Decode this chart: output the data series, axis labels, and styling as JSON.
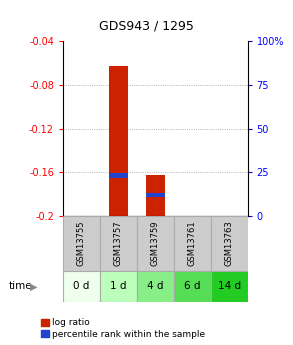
{
  "title": "GDS943 / 1295",
  "samples": [
    "GSM13755",
    "GSM13757",
    "GSM13759",
    "GSM13761",
    "GSM13763"
  ],
  "time_labels": [
    "0 d",
    "1 d",
    "4 d",
    "6 d",
    "14 d"
  ],
  "ylim_left": [
    -0.2,
    -0.04
  ],
  "ylim_right": [
    0,
    100
  ],
  "yticks_left": [
    -0.2,
    -0.16,
    -0.12,
    -0.08,
    -0.04
  ],
  "yticks_right": [
    0,
    25,
    50,
    75,
    100
  ],
  "log_ratio": [
    null,
    -0.063,
    -0.163,
    null,
    null
  ],
  "percentile_rank": [
    null,
    23,
    12,
    null,
    null
  ],
  "bar_color": "#cc2200",
  "percentile_color": "#2244cc",
  "bar_width": 0.5,
  "pct_bar_height": 0.004,
  "gsm_bg_color": "#cccccc",
  "gsm_border_color": "#aaaaaa",
  "time_bg_colors": [
    "#eeffee",
    "#bbffbb",
    "#88ee88",
    "#55dd55",
    "#22cc22"
  ],
  "time_border_color": "#aaaaaa",
  "legend_log_ratio": "log ratio",
  "legend_percentile": "percentile rank within the sample",
  "bar_color_legend": "#cc2200",
  "percentile_color_legend": "#2244cc"
}
